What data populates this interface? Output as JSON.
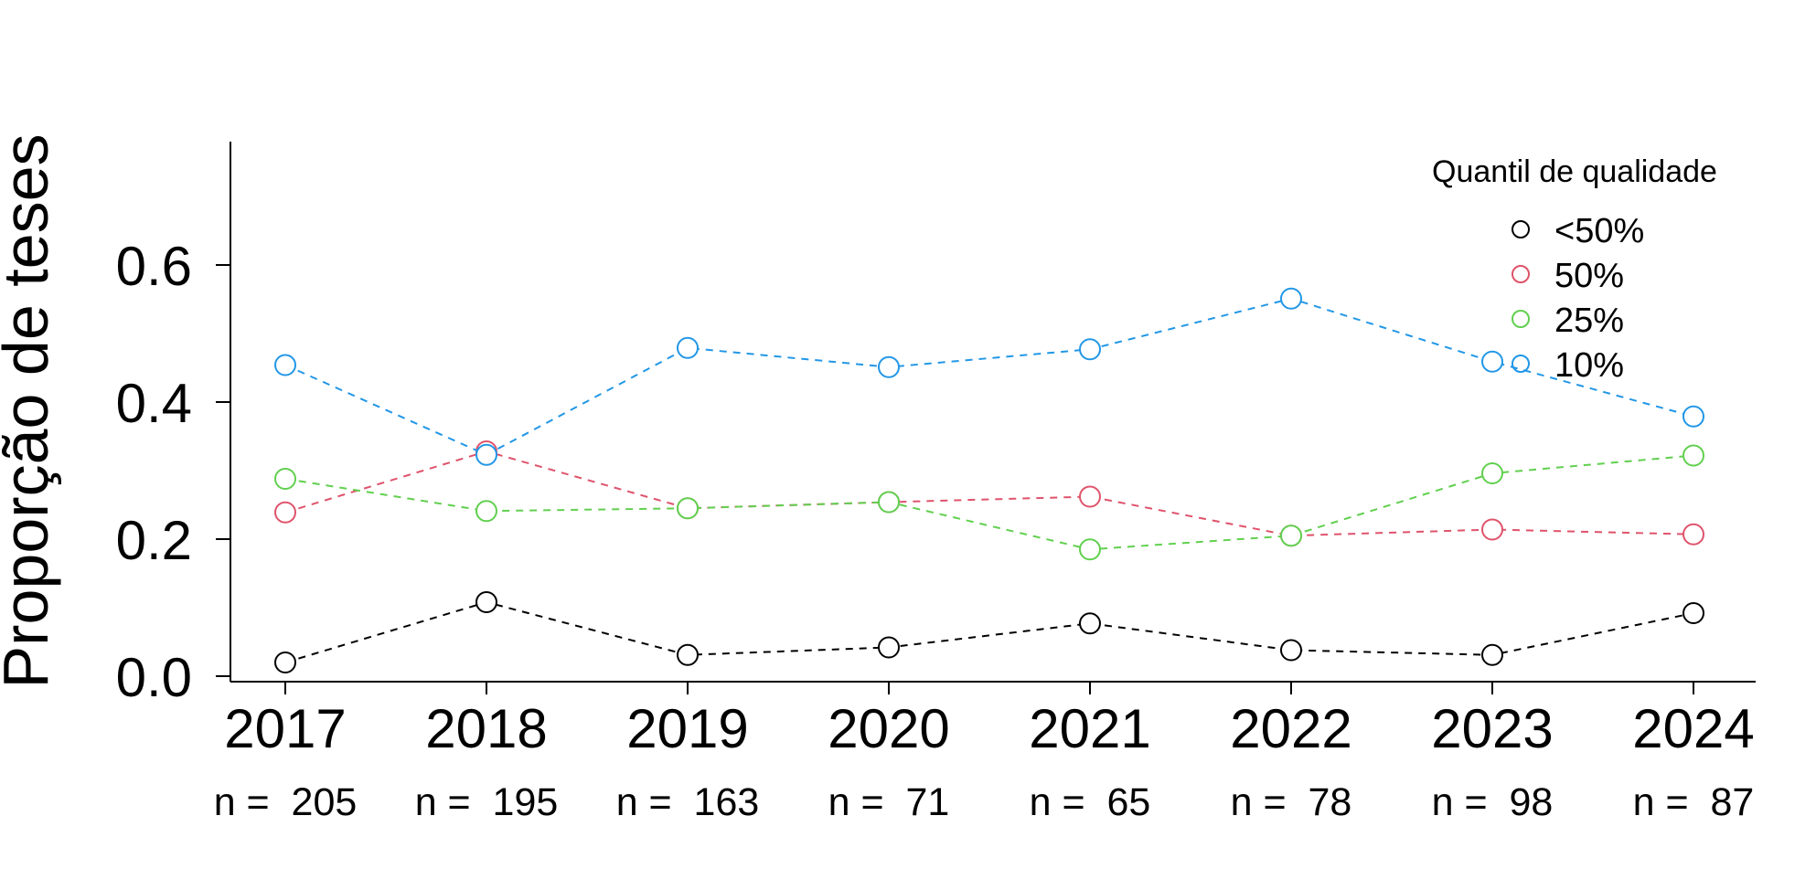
{
  "chart_data": {
    "type": "line",
    "title": "",
    "ylabel": "Proporção de teses",
    "xlabel": "",
    "categories": [
      "2017",
      "2018",
      "2019",
      "2020",
      "2021",
      "2022",
      "2023",
      "2024"
    ],
    "n_labels": [
      "n =  205",
      "n =  195",
      "n =  163",
      "n =  71",
      "n =  65",
      "n =  78",
      "n =  98",
      "n =  87"
    ],
    "yticks": [
      "0.0",
      "0.2",
      "0.4",
      "0.6"
    ],
    "ylim": [
      0,
      0.78
    ],
    "legend": {
      "title": "Quantil de qualidade",
      "position": "top-right"
    },
    "series": [
      {
        "name": "<50%",
        "color": "#000000",
        "values": [
          0.02,
          0.108,
          0.031,
          0.042,
          0.077,
          0.038,
          0.031,
          0.092
        ]
      },
      {
        "name": "50%",
        "color": "#DF536B",
        "values": [
          0.239,
          0.328,
          0.245,
          0.254,
          0.262,
          0.205,
          0.214,
          0.207
        ]
      },
      {
        "name": "25%",
        "color": "#61D04F",
        "values": [
          0.288,
          0.241,
          0.245,
          0.254,
          0.185,
          0.205,
          0.296,
          0.322
        ]
      },
      {
        "name": "10%",
        "color": "#2297E6",
        "values": [
          0.454,
          0.323,
          0.479,
          0.451,
          0.477,
          0.551,
          0.459,
          0.379
        ]
      }
    ]
  }
}
